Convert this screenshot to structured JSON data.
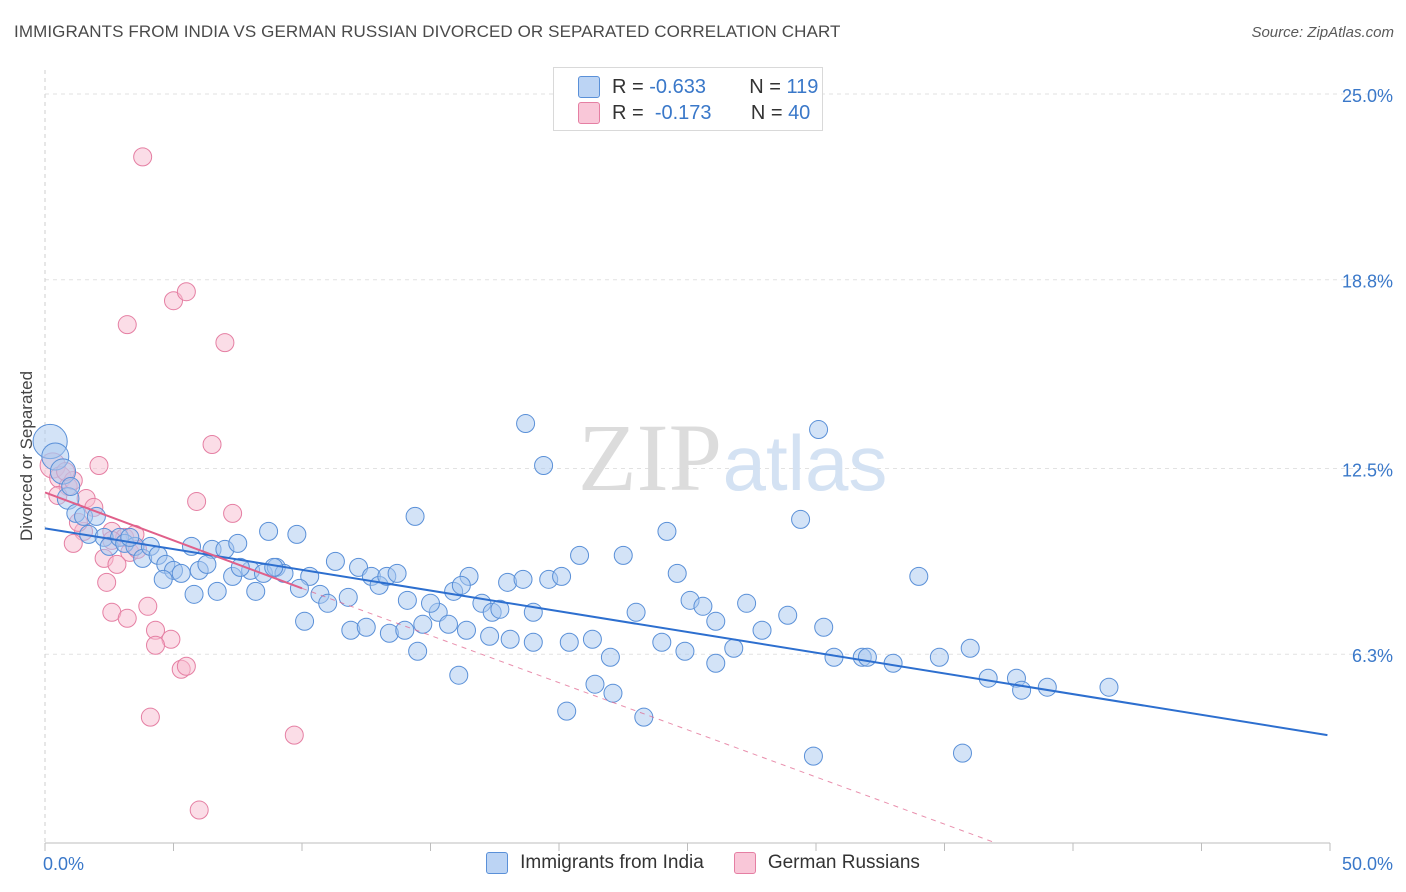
{
  "header": {
    "title": "IMMIGRANTS FROM INDIA VS GERMAN RUSSIAN DIVORCED OR SEPARATED CORRELATION CHART",
    "source": "Source: ZipAtlas.com"
  },
  "watermark": {
    "zip": "ZIP",
    "atlas": "atlas"
  },
  "legend": {
    "india": {
      "r_label": "R =",
      "r_value": "-0.633",
      "n_label": "N =",
      "n_value": "119"
    },
    "german": {
      "r_label": "R =",
      "r_value": "-0.173",
      "n_label": "N =",
      "n_value": "40"
    }
  },
  "colors": {
    "india_fill": "#a8c8f0",
    "india_stroke": "#5a90d8",
    "india_line": "#2d6fcf",
    "german_fill": "#f7bcd0",
    "german_stroke": "#e57fa3",
    "german_line": "#e0608a",
    "tick_label": "#3a78c9",
    "grid": "#e2e2e2"
  },
  "chart_data": {
    "type": "scatter",
    "title": "IMMIGRANTS FROM INDIA VS GERMAN RUSSIAN DIVORCED OR SEPARATED CORRELATION CHART",
    "xlabel": "",
    "ylabel": "Divorced or Separated",
    "xlim": [
      0,
      50
    ],
    "ylim": [
      0,
      25.8
    ],
    "x_tick_labels": [
      "0.0%",
      "50.0%"
    ],
    "y_ticks": [
      6.3,
      12.5,
      18.8,
      25.0
    ],
    "y_tick_labels": [
      "6.3%",
      "12.5%",
      "18.8%",
      "25.0%"
    ],
    "grid": true,
    "legend_placement": "top-center",
    "series": [
      {
        "name": "Immigrants from India",
        "trend": {
          "x0": 0,
          "y0": 10.5,
          "x1": 49.9,
          "y1": 3.6
        },
        "points": [
          [
            0.2,
            13.4,
            1.9
          ],
          [
            0.4,
            12.9,
            1.5
          ],
          [
            0.7,
            12.4,
            1.4
          ],
          [
            0.9,
            11.5,
            1.2
          ],
          [
            1.2,
            11.0,
            1.0
          ],
          [
            1.5,
            10.9,
            1.0
          ],
          [
            1.7,
            10.3,
            1.0
          ],
          [
            2.3,
            10.2,
            1.0
          ],
          [
            2.5,
            9.9,
            1.0
          ],
          [
            2.9,
            10.2,
            1.0
          ],
          [
            3.1,
            10.0,
            1.0
          ],
          [
            3.5,
            9.9,
            1.0
          ],
          [
            3.8,
            9.5,
            1.0
          ],
          [
            4.1,
            9.9,
            1.0
          ],
          [
            4.4,
            9.6,
            1.0
          ],
          [
            4.7,
            9.3,
            1.0
          ],
          [
            5.0,
            9.1,
            1.0
          ],
          [
            5.3,
            9.0,
            1.0
          ],
          [
            5.7,
            9.9,
            1.0
          ],
          [
            6.0,
            9.1,
            1.0
          ],
          [
            6.5,
            9.8,
            1.0
          ],
          [
            7.0,
            9.8,
            1.0
          ],
          [
            7.5,
            10.0,
            1.0
          ],
          [
            8.0,
            9.1,
            1.0
          ],
          [
            8.5,
            9.0,
            1.0
          ],
          [
            9.0,
            9.2,
            1.0
          ],
          [
            3.3,
            10.2,
            1.0
          ],
          [
            4.6,
            8.8,
            1.0
          ],
          [
            5.8,
            8.3,
            1.0
          ],
          [
            6.7,
            8.4,
            1.0
          ],
          [
            7.3,
            8.9,
            1.0
          ],
          [
            8.2,
            8.4,
            1.0
          ],
          [
            8.7,
            10.4,
            1.0
          ],
          [
            9.3,
            9.0,
            1.0
          ],
          [
            9.8,
            10.3,
            1.0
          ],
          [
            10.3,
            8.9,
            1.0
          ],
          [
            10.7,
            8.3,
            1.0
          ],
          [
            11.0,
            8.0,
            1.0
          ],
          [
            11.3,
            9.4,
            1.0
          ],
          [
            11.8,
            8.2,
            1.0
          ],
          [
            12.2,
            9.2,
            1.0
          ],
          [
            12.7,
            8.9,
            1.0
          ],
          [
            13.0,
            8.6,
            1.0
          ],
          [
            13.3,
            8.9,
            1.0
          ],
          [
            13.7,
            9.0,
            1.0
          ],
          [
            14.1,
            8.1,
            1.0
          ],
          [
            14.7,
            7.3,
            1.0
          ],
          [
            15.3,
            7.7,
            1.0
          ],
          [
            15.9,
            8.4,
            1.0
          ],
          [
            16.5,
            8.9,
            1.0
          ],
          [
            17.0,
            8.0,
            1.0
          ],
          [
            17.4,
            7.7,
            1.0
          ],
          [
            18.0,
            8.7,
            1.0
          ],
          [
            18.6,
            8.8,
            1.0
          ],
          [
            19.0,
            7.7,
            1.0
          ],
          [
            19.6,
            8.8,
            1.0
          ],
          [
            20.1,
            8.9,
            1.0
          ],
          [
            20.8,
            9.6,
            1.0
          ],
          [
            14.4,
            10.9,
            1.0
          ],
          [
            9.9,
            8.5,
            1.0
          ],
          [
            10.1,
            7.4,
            1.0
          ],
          [
            11.9,
            7.1,
            1.0
          ],
          [
            12.5,
            7.2,
            1.0
          ],
          [
            13.4,
            7.0,
            1.0
          ],
          [
            14.0,
            7.1,
            1.0
          ],
          [
            14.5,
            6.4,
            1.0
          ],
          [
            15.7,
            7.3,
            1.0
          ],
          [
            16.4,
            7.1,
            1.0
          ],
          [
            17.3,
            6.9,
            1.0
          ],
          [
            18.1,
            6.8,
            1.0
          ],
          [
            18.7,
            14.0,
            1.0
          ],
          [
            19.4,
            12.6,
            1.0
          ],
          [
            19.0,
            6.7,
            1.0
          ],
          [
            20.4,
            6.7,
            1.0
          ],
          [
            21.3,
            6.8,
            1.0
          ],
          [
            22.0,
            6.2,
            1.0
          ],
          [
            23.0,
            7.7,
            1.0
          ],
          [
            24.0,
            6.7,
            1.0
          ],
          [
            24.6,
            9.0,
            1.0
          ],
          [
            25.1,
            8.1,
            1.0
          ],
          [
            26.1,
            7.4,
            1.0
          ],
          [
            26.8,
            6.5,
            1.0
          ],
          [
            27.3,
            8.0,
            1.0
          ],
          [
            28.9,
            7.6,
            1.0
          ],
          [
            29.4,
            10.8,
            1.0
          ],
          [
            30.3,
            7.2,
            1.0
          ],
          [
            30.7,
            6.2,
            1.0
          ],
          [
            31.8,
            6.2,
            1.0
          ],
          [
            33.0,
            6.0,
            1.0
          ],
          [
            36.0,
            6.5,
            1.0
          ],
          [
            36.7,
            5.5,
            1.0
          ],
          [
            37.8,
            5.5,
            1.0
          ],
          [
            38.0,
            5.1,
            1.0
          ],
          [
            41.4,
            5.2,
            1.0
          ],
          [
            30.1,
            13.8,
            1.0
          ],
          [
            24.9,
            6.4,
            1.0
          ],
          [
            22.5,
            9.6,
            1.0
          ],
          [
            23.3,
            4.2,
            1.0
          ],
          [
            21.4,
            5.3,
            1.0
          ],
          [
            22.1,
            5.0,
            1.0
          ],
          [
            20.3,
            4.4,
            1.0
          ],
          [
            16.1,
            5.6,
            1.0
          ],
          [
            34.0,
            8.9,
            1.0
          ],
          [
            29.9,
            2.9,
            1.0
          ],
          [
            35.7,
            3.0,
            1.0
          ],
          [
            26.1,
            6.0,
            1.0
          ],
          [
            24.2,
            10.4,
            1.0
          ],
          [
            1.0,
            11.9,
            1.0
          ],
          [
            2.0,
            10.9,
            1.0
          ],
          [
            6.3,
            9.3,
            1.0
          ],
          [
            7.6,
            9.2,
            1.0
          ],
          [
            8.9,
            9.2,
            1.0
          ],
          [
            15.0,
            8.0,
            1.0
          ],
          [
            16.2,
            8.6,
            1.0
          ],
          [
            17.7,
            7.8,
            1.0
          ],
          [
            25.6,
            7.9,
            1.0
          ],
          [
            27.9,
            7.1,
            1.0
          ],
          [
            32.0,
            6.2,
            1.0
          ],
          [
            34.8,
            6.2,
            1.0
          ],
          [
            39.0,
            5.2,
            1.0
          ]
        ]
      },
      {
        "name": "German Russians",
        "trend": {
          "x0": 0,
          "y0": 11.7,
          "x1": 10.0,
          "y1": 8.5
        },
        "trend_ext": {
          "x0": 10.0,
          "y0": 8.5,
          "x1": 37.0,
          "y1": 0.0
        },
        "points": [
          [
            0.3,
            12.6,
            1.4
          ],
          [
            0.6,
            12.2,
            1.2
          ],
          [
            0.9,
            11.9,
            1.0
          ],
          [
            1.1,
            12.1,
            1.0
          ],
          [
            0.5,
            11.6,
            1.0
          ],
          [
            1.6,
            11.5,
            1.0
          ],
          [
            1.9,
            11.2,
            1.0
          ],
          [
            2.1,
            12.6,
            1.0
          ],
          [
            2.6,
            10.4,
            1.0
          ],
          [
            3.1,
            10.2,
            1.0
          ],
          [
            3.5,
            10.3,
            1.0
          ],
          [
            3.3,
            9.7,
            1.0
          ],
          [
            2.4,
            8.7,
            1.0
          ],
          [
            2.3,
            9.5,
            1.0
          ],
          [
            2.6,
            7.7,
            1.0
          ],
          [
            3.2,
            7.5,
            1.0
          ],
          [
            4.0,
            7.9,
            1.0
          ],
          [
            4.3,
            7.1,
            1.0
          ],
          [
            4.9,
            6.8,
            1.0
          ],
          [
            5.3,
            5.8,
            1.0
          ],
          [
            5.5,
            5.9,
            1.0
          ],
          [
            4.3,
            6.6,
            1.0
          ],
          [
            4.1,
            4.2,
            1.0
          ],
          [
            3.8,
            22.9,
            1.0
          ],
          [
            5.0,
            18.1,
            1.0
          ],
          [
            5.5,
            18.4,
            1.0
          ],
          [
            3.2,
            17.3,
            1.0
          ],
          [
            7.0,
            16.7,
            1.0
          ],
          [
            6.5,
            13.3,
            1.0
          ],
          [
            5.9,
            11.4,
            1.0
          ],
          [
            7.3,
            11.0,
            1.0
          ],
          [
            9.7,
            3.6,
            1.0
          ],
          [
            6.0,
            1.1,
            1.0
          ],
          [
            1.5,
            10.4,
            1.0
          ],
          [
            1.1,
            10.0,
            1.0
          ],
          [
            2.6,
            10.1,
            1.0
          ],
          [
            3.6,
            9.8,
            1.0
          ],
          [
            0.8,
            12.4,
            1.0
          ],
          [
            1.3,
            10.7,
            1.0
          ],
          [
            2.8,
            9.3,
            1.0
          ]
        ]
      }
    ]
  },
  "bottom_legend": {
    "india_label": "Immigrants from India",
    "german_label": "German Russians"
  }
}
